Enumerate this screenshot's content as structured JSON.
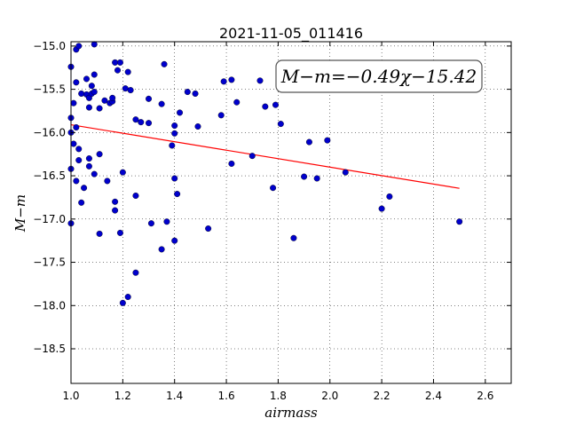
{
  "chart_data": {
    "type": "scatter",
    "title": "2021-11-05_011416",
    "xlabel": "airmass",
    "ylabel": "M−m",
    "xlim": [
      1.0,
      2.7
    ],
    "ylim": [
      -14.95,
      -18.9
    ],
    "x_ticks": [
      "1.0",
      "1.2",
      "1.4",
      "1.6",
      "1.8",
      "2.0",
      "2.2",
      "2.4",
      "2.6"
    ],
    "y_ticks": [
      "−15.0",
      "−15.5",
      "−16.0",
      "−16.5",
      "−17.0",
      "−17.5",
      "−18.0",
      "−18.5"
    ],
    "grid": true,
    "annotation": "M−m=−0.49χ−15.42",
    "fit": {
      "slope": -0.49,
      "intercept": -15.42,
      "x_range": [
        1.0,
        2.5
      ],
      "color": "#ff0000"
    },
    "point_color": "#0000cc",
    "points": [
      [
        1.0,
        -15.24
      ],
      [
        1.0,
        -15.83
      ],
      [
        1.0,
        -16.0
      ],
      [
        1.0,
        -16.42
      ],
      [
        1.0,
        -17.05
      ],
      [
        1.01,
        -15.66
      ],
      [
        1.01,
        -16.13
      ],
      [
        1.02,
        -15.42
      ],
      [
        1.02,
        -15.94
      ],
      [
        1.02,
        -16.56
      ],
      [
        1.02,
        -15.04
      ],
      [
        1.03,
        -15.0
      ],
      [
        1.03,
        -16.32
      ],
      [
        1.03,
        -16.19
      ],
      [
        1.04,
        -15.55
      ],
      [
        1.04,
        -16.81
      ],
      [
        1.05,
        -16.64
      ],
      [
        1.06,
        -15.38
      ],
      [
        1.06,
        -15.56
      ],
      [
        1.07,
        -15.6
      ],
      [
        1.07,
        -15.71
      ],
      [
        1.07,
        -16.3
      ],
      [
        1.07,
        -16.39
      ],
      [
        1.08,
        -15.55
      ],
      [
        1.08,
        -15.46
      ],
      [
        1.09,
        -15.33
      ],
      [
        1.09,
        -15.53
      ],
      [
        1.09,
        -16.48
      ],
      [
        1.09,
        -14.98
      ],
      [
        1.11,
        -15.72
      ],
      [
        1.11,
        -16.25
      ],
      [
        1.11,
        -17.17
      ],
      [
        1.13,
        -15.63
      ],
      [
        1.14,
        -16.56
      ],
      [
        1.15,
        -15.66
      ],
      [
        1.16,
        -15.64
      ],
      [
        1.16,
        -15.6
      ],
      [
        1.17,
        -15.19
      ],
      [
        1.17,
        -16.8
      ],
      [
        1.17,
        -16.9
      ],
      [
        1.18,
        -15.28
      ],
      [
        1.19,
        -15.19
      ],
      [
        1.19,
        -17.16
      ],
      [
        1.2,
        -16.46
      ],
      [
        1.2,
        -17.97
      ],
      [
        1.21,
        -15.49
      ],
      [
        1.22,
        -15.3
      ],
      [
        1.22,
        -17.9
      ],
      [
        1.23,
        -15.51
      ],
      [
        1.25,
        -15.85
      ],
      [
        1.25,
        -16.73
      ],
      [
        1.25,
        -17.62
      ],
      [
        1.27,
        -15.88
      ],
      [
        1.3,
        -15.61
      ],
      [
        1.3,
        -15.89
      ],
      [
        1.31,
        -17.05
      ],
      [
        1.35,
        -15.67
      ],
      [
        1.35,
        -17.35
      ],
      [
        1.36,
        -15.21
      ],
      [
        1.37,
        -17.03
      ],
      [
        1.39,
        -16.15
      ],
      [
        1.4,
        -15.92
      ],
      [
        1.4,
        -16.01
      ],
      [
        1.4,
        -16.53
      ],
      [
        1.4,
        -17.25
      ],
      [
        1.41,
        -16.71
      ],
      [
        1.42,
        -15.77
      ],
      [
        1.45,
        -15.53
      ],
      [
        1.48,
        -15.55
      ],
      [
        1.49,
        -15.93
      ],
      [
        1.53,
        -17.11
      ],
      [
        1.58,
        -15.8
      ],
      [
        1.59,
        -15.41
      ],
      [
        1.62,
        -15.39
      ],
      [
        1.62,
        -16.36
      ],
      [
        1.64,
        -15.65
      ],
      [
        1.7,
        -16.27
      ],
      [
        1.73,
        -15.4
      ],
      [
        1.75,
        -15.7
      ],
      [
        1.78,
        -16.64
      ],
      [
        1.79,
        -15.68
      ],
      [
        1.81,
        -15.9
      ],
      [
        1.86,
        -17.22
      ],
      [
        1.9,
        -16.51
      ],
      [
        1.92,
        -16.11
      ],
      [
        1.95,
        -16.53
      ],
      [
        1.99,
        -16.09
      ],
      [
        2.06,
        -16.46
      ],
      [
        2.2,
        -16.88
      ],
      [
        2.23,
        -16.74
      ],
      [
        2.5,
        -17.03
      ]
    ]
  }
}
